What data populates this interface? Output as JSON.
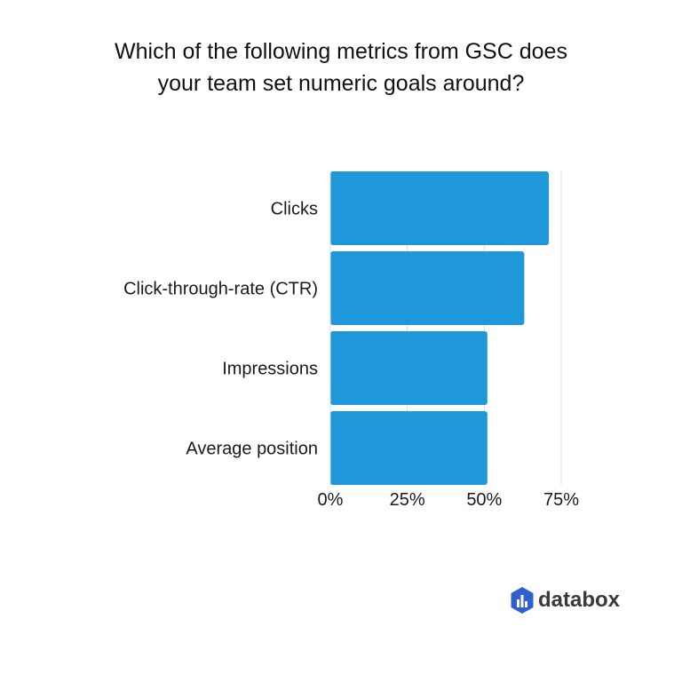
{
  "chart_data": {
    "type": "bar",
    "orientation": "horizontal",
    "title_lines": [
      "Which of the following metrics from GSC does",
      "your team set numeric goals around?"
    ],
    "categories": [
      "Clicks",
      "Click-through-rate (CTR)",
      "Impressions",
      "Average position"
    ],
    "values": [
      71,
      63,
      51,
      51
    ],
    "xlim": [
      0,
      75
    ],
    "x_ticks": [
      0,
      25,
      50,
      75
    ],
    "x_tick_labels": [
      "0%",
      "25%",
      "50%",
      "75%"
    ],
    "grid": true,
    "bar_color": "#1e98d8",
    "grid_color": "#dddddd"
  },
  "brand": {
    "name": "databox",
    "logo_icon": "databox-logo-icon",
    "logo_color": "#2f5fd0"
  }
}
